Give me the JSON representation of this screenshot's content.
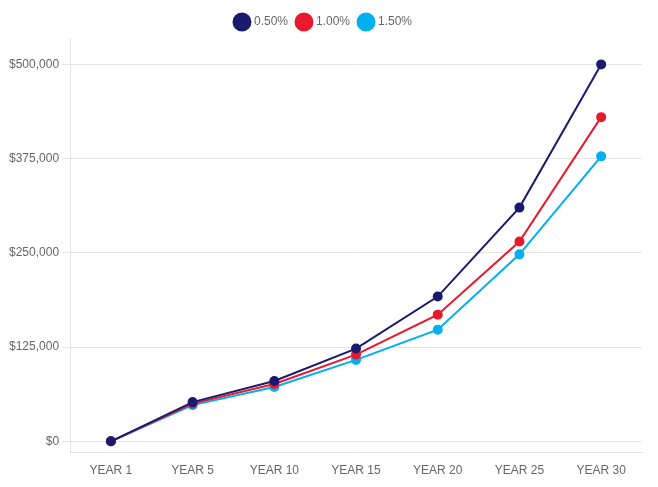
{
  "chart_data": {
    "type": "line",
    "categories": [
      "YEAR 1",
      "YEAR 5",
      "YEAR 10",
      "YEAR 15",
      "YEAR 20",
      "YEAR 25",
      "YEAR 30"
    ],
    "series": [
      {
        "name": "0.50%",
        "color": "#1a1a6e",
        "values": [
          0,
          52000,
          80000,
          123000,
          192000,
          310000,
          500000
        ]
      },
      {
        "name": "1.00%",
        "color": "#e8192c",
        "values": [
          0,
          50000,
          76000,
          115000,
          168000,
          265000,
          430000
        ]
      },
      {
        "name": "1.50%",
        "color": "#00b0f0",
        "values": [
          0,
          48000,
          72000,
          108000,
          148000,
          248000,
          378000
        ]
      }
    ],
    "ylim": [
      -15000,
      535000
    ],
    "yticks": [
      {
        "value": 0,
        "label": "$0"
      },
      {
        "value": 125000,
        "label": "$125,000"
      },
      {
        "value": 250000,
        "label": "$250,000"
      },
      {
        "value": 375000,
        "label": "$375,000"
      },
      {
        "value": 500000,
        "label": "$500,000"
      }
    ],
    "grid": true,
    "legend": "top",
    "marker": "circle"
  }
}
